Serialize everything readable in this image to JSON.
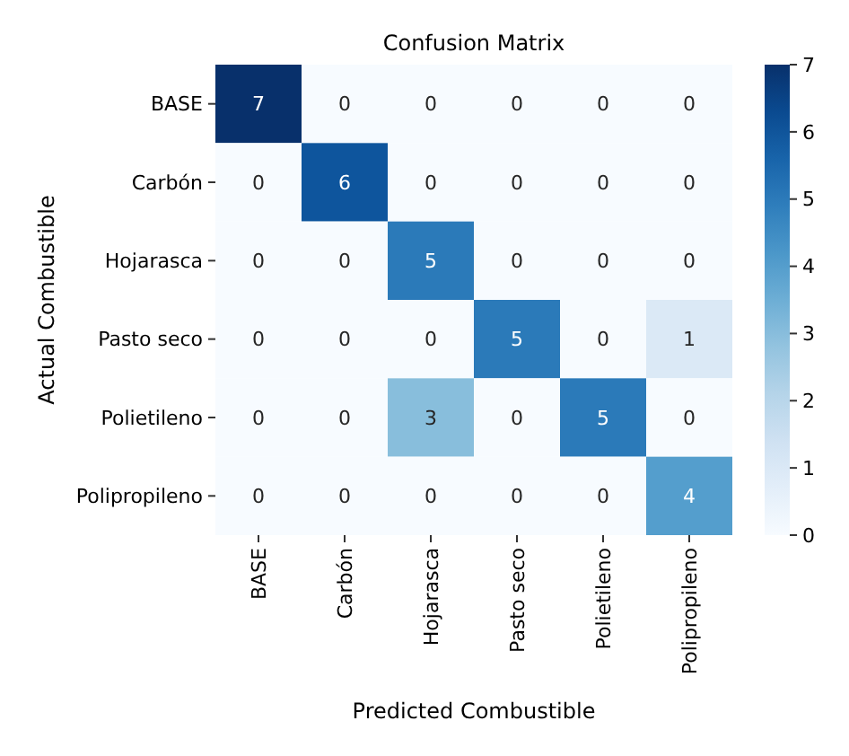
{
  "chart_data": {
    "type": "heatmap",
    "title": "Confusion Matrix",
    "xlabel": "Predicted Combustible",
    "ylabel": "Actual Combustible",
    "categories": [
      "BASE",
      "Carbón",
      "Hojarasca",
      "Pasto seco",
      "Polietileno",
      "Polipropileno"
    ],
    "y_categories": [
      "BASE",
      "Carbón",
      "Hojarasca",
      "Pasto seco",
      "Polietileno",
      "Polipropileno"
    ],
    "cells": [
      [
        7,
        0,
        0,
        0,
        0,
        0
      ],
      [
        0,
        6,
        0,
        0,
        0,
        0
      ],
      [
        0,
        0,
        5,
        0,
        0,
        0
      ],
      [
        0,
        0,
        0,
        5,
        0,
        1
      ],
      [
        0,
        0,
        3,
        0,
        5,
        0
      ],
      [
        0,
        0,
        0,
        0,
        0,
        4
      ]
    ],
    "clim": [
      0,
      7
    ],
    "cticks": [
      0,
      1,
      2,
      3,
      4,
      5,
      6,
      7
    ],
    "data_labels": true
  }
}
